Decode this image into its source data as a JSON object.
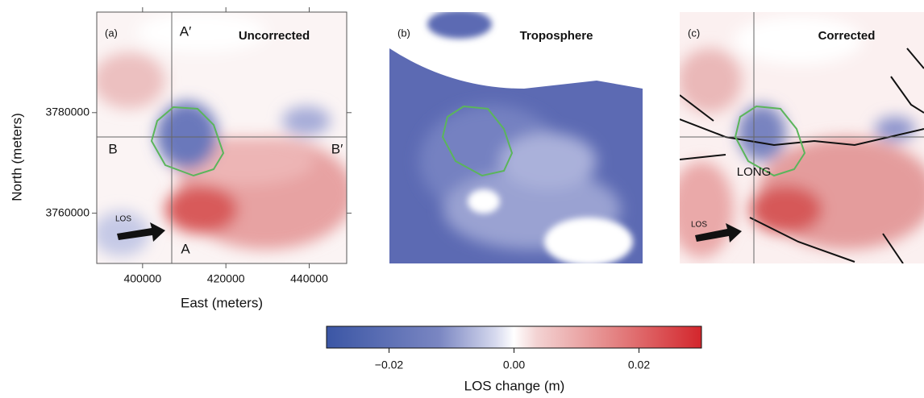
{
  "figure": {
    "panels": [
      {
        "label": "(a)",
        "title": "Uncorrected"
      },
      {
        "label": "(b)",
        "title": "Troposphere"
      },
      {
        "label": "(c)",
        "title": "Corrected"
      }
    ],
    "map_axes": {
      "xlabel": "East (meters)",
      "ylabel": "North (meters)",
      "xlim": [
        389000,
        449000
      ],
      "ylim": [
        3750000,
        3800000
      ],
      "xticks": [
        400000,
        420000,
        440000
      ],
      "yticks": [
        3760000,
        3780000
      ]
    },
    "annotations": {
      "a_prime": "A′",
      "a": "A",
      "b": "B",
      "b_prime": "B′",
      "los_a": "LOS",
      "los_c": "LOS",
      "long": "LONG"
    },
    "colorbar": {
      "label": "LOS change (m)",
      "lim": [
        -0.03,
        0.03
      ],
      "ticks": [
        {
          "value": -0.02,
          "label": "−0.02"
        },
        {
          "value": 0,
          "label": "0.00"
        },
        0.02
      ]
    }
  }
}
